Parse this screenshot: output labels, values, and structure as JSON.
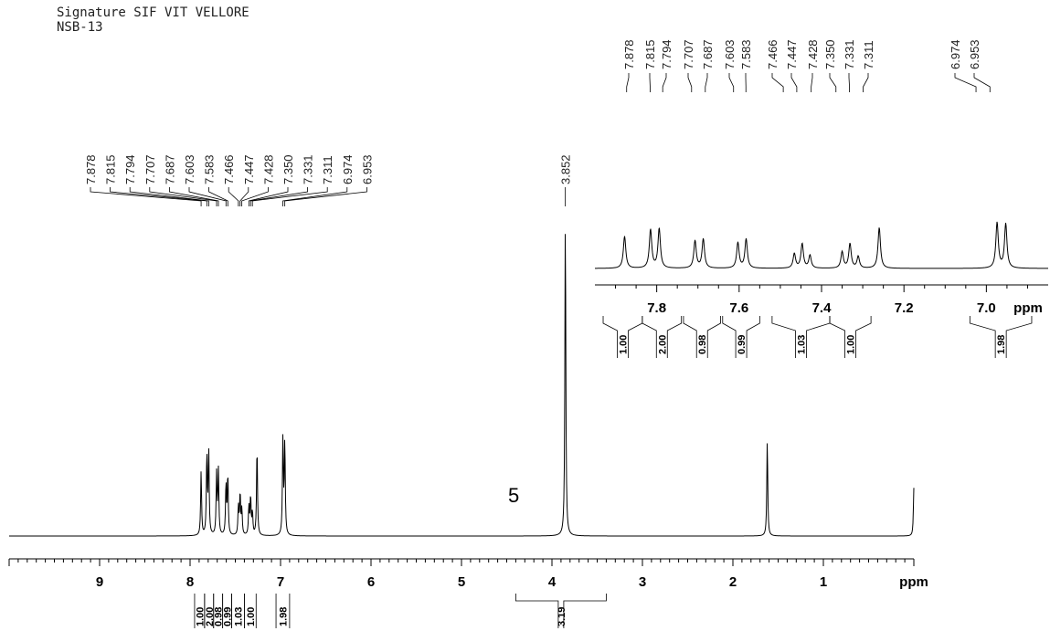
{
  "header": {
    "line1": "Signature SIF VIT VELLORE",
    "line2": "NSB-13"
  },
  "compound_number": "5",
  "chart_data": {
    "type": "line",
    "ppm_unit": "ppm",
    "main": {
      "xlim": [
        10.0,
        0.0
      ],
      "ticks": [
        "9",
        "8",
        "7",
        "6",
        "5",
        "4",
        "3",
        "2",
        "1"
      ],
      "peaks": [
        {
          "ppm": 7.878,
          "h": 0.2
        },
        {
          "ppm": 7.815,
          "h": 0.25
        },
        {
          "ppm": 7.794,
          "h": 0.26
        },
        {
          "ppm": 7.707,
          "h": 0.19
        },
        {
          "ppm": 7.687,
          "h": 0.2
        },
        {
          "ppm": 7.603,
          "h": 0.16
        },
        {
          "ppm": 7.583,
          "h": 0.19
        },
        {
          "ppm": 7.466,
          "h": 0.09
        },
        {
          "ppm": 7.447,
          "h": 0.13
        },
        {
          "ppm": 7.428,
          "h": 0.08
        },
        {
          "ppm": 7.35,
          "h": 0.09
        },
        {
          "ppm": 7.331,
          "h": 0.12
        },
        {
          "ppm": 7.311,
          "h": 0.07
        },
        {
          "ppm": 7.26,
          "h": 0.28
        },
        {
          "ppm": 6.974,
          "h": 0.3
        },
        {
          "ppm": 6.953,
          "h": 0.29
        },
        {
          "ppm": 3.852,
          "h": 1.0
        },
        {
          "ppm": 1.62,
          "h": 0.3
        },
        {
          "ppm": 0.0,
          "h": 0.15
        }
      ],
      "peak_labels": [
        "7.878",
        "7.815",
        "7.794",
        "7.707",
        "7.687",
        "7.603",
        "7.583",
        "7.466",
        "7.447",
        "7.428",
        "7.350",
        "7.331",
        "7.311",
        "6.974",
        "6.953"
      ],
      "solo_label": "3.852",
      "integrals": [
        {
          "from": 7.95,
          "to": 7.84,
          "value": "1.00"
        },
        {
          "from": 7.84,
          "to": 7.74,
          "value": "2.00"
        },
        {
          "from": 7.74,
          "to": 7.64,
          "value": "0.98"
        },
        {
          "from": 7.64,
          "to": 7.54,
          "value": "0.99"
        },
        {
          "from": 7.54,
          "to": 7.4,
          "value": "1.03"
        },
        {
          "from": 7.4,
          "to": 7.27,
          "value": "1.00"
        },
        {
          "from": 7.05,
          "to": 6.9,
          "value": "1.98"
        },
        {
          "from": 4.4,
          "to": 3.4,
          "value": "3.19"
        }
      ]
    },
    "inset": {
      "xlim": [
        7.95,
        6.85
      ],
      "ticks": [
        "7.8",
        "7.6",
        "7.4",
        "7.2",
        "7.0"
      ],
      "peaks": [
        {
          "ppm": 7.878,
          "h": 0.55
        },
        {
          "ppm": 7.815,
          "h": 0.66
        },
        {
          "ppm": 7.794,
          "h": 0.68
        },
        {
          "ppm": 7.707,
          "h": 0.47
        },
        {
          "ppm": 7.687,
          "h": 0.5
        },
        {
          "ppm": 7.603,
          "h": 0.44
        },
        {
          "ppm": 7.583,
          "h": 0.5
        },
        {
          "ppm": 7.466,
          "h": 0.25
        },
        {
          "ppm": 7.447,
          "h": 0.42
        },
        {
          "ppm": 7.428,
          "h": 0.22
        },
        {
          "ppm": 7.35,
          "h": 0.28
        },
        {
          "ppm": 7.331,
          "h": 0.42
        },
        {
          "ppm": 7.311,
          "h": 0.2
        },
        {
          "ppm": 7.26,
          "h": 0.7
        },
        {
          "ppm": 6.974,
          "h": 0.78
        },
        {
          "ppm": 6.953,
          "h": 0.76
        }
      ],
      "peak_labels": [
        "7.878",
        "7.815",
        "7.794",
        "7.707",
        "7.687",
        "7.603",
        "7.583",
        "7.466",
        "7.447",
        "7.428",
        "7.350",
        "7.331",
        "7.311",
        "6.974",
        "6.953"
      ],
      "integrals": [
        {
          "from": 7.93,
          "to": 7.835,
          "value": "1.00"
        },
        {
          "from": 7.835,
          "to": 7.74,
          "value": "2.00"
        },
        {
          "from": 7.735,
          "to": 7.645,
          "value": "0.98"
        },
        {
          "from": 7.64,
          "to": 7.55,
          "value": "0.99"
        },
        {
          "from": 7.52,
          "to": 7.38,
          "value": "1.03"
        },
        {
          "from": 7.38,
          "to": 7.28,
          "value": "1.00"
        },
        {
          "from": 7.04,
          "to": 6.89,
          "value": "1.98"
        }
      ]
    }
  }
}
